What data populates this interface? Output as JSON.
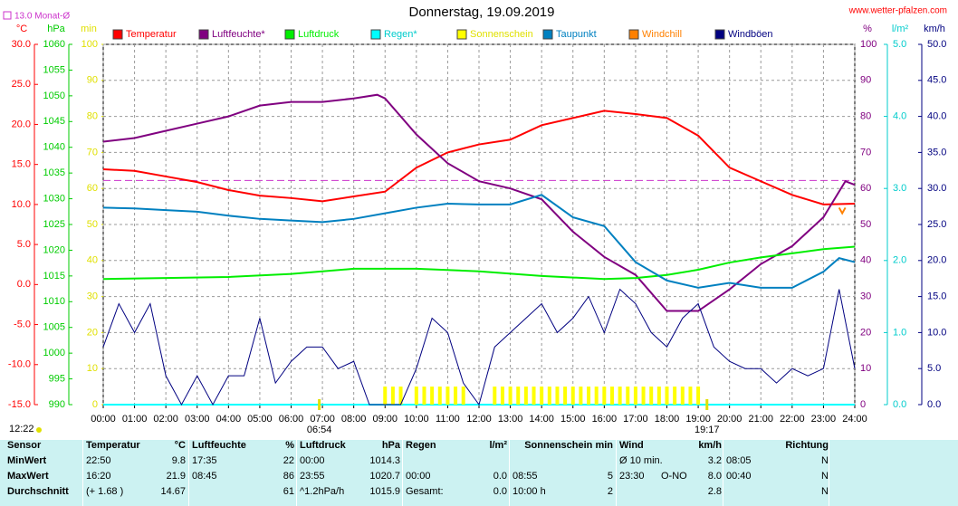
{
  "chart_data": {
    "type": "line",
    "title": "Donnerstag, 19.09.2019",
    "site": "www.wetter-pfalzen.com",
    "monthly_mean": {
      "label": "13.0 Monat-Ø",
      "value": 13.0,
      "color": "#cc33cc"
    },
    "axes": {
      "temp": {
        "unit": "°C",
        "color": "#ff0000",
        "lim": [
          -15,
          30
        ],
        "ticks": [
          {
            "value": -15,
            "label": "-15.0"
          },
          {
            "value": -10,
            "label": "-10.0"
          },
          {
            "value": -5,
            "label": "-5.0"
          },
          {
            "value": 0,
            "label": "0.0"
          },
          {
            "value": 5,
            "label": "5.0"
          },
          {
            "value": 10,
            "label": "10.0"
          },
          {
            "value": 15,
            "label": "15.0"
          },
          {
            "value": 20,
            "label": "20.0"
          },
          {
            "value": 25,
            "label": "25.0"
          },
          {
            "value": 30,
            "label": "30.0"
          }
        ]
      },
      "hpa": {
        "unit": "hPa",
        "color": "#00cc00",
        "lim": [
          990,
          1060
        ],
        "ticks": [
          990,
          995,
          1000,
          1005,
          1010,
          1015,
          1020,
          1025,
          1030,
          1035,
          1040,
          1045,
          1050,
          1055,
          1060
        ]
      },
      "min": {
        "unit": "min",
        "color": "#e0e000",
        "lim": [
          0,
          100
        ],
        "ticks": [
          0,
          10,
          20,
          30,
          40,
          50,
          60,
          70,
          80,
          90,
          100
        ]
      },
      "pct": {
        "unit": "%",
        "color": "#800080",
        "lim": [
          0,
          100
        ],
        "ticks": [
          0,
          10,
          20,
          30,
          40,
          50,
          60,
          70,
          80,
          90,
          100
        ]
      },
      "rain": {
        "unit": "l/m²",
        "color": "#00cccc",
        "lim": [
          0,
          5
        ],
        "ticks": [
          {
            "value": 0,
            "label": "0.0"
          },
          {
            "value": 1,
            "label": "1.0"
          },
          {
            "value": 2,
            "label": "2.0"
          },
          {
            "value": 3,
            "label": "3.0"
          },
          {
            "value": 4,
            "label": "4.0"
          },
          {
            "value": 5,
            "label": "5.0"
          }
        ]
      },
      "kmh": {
        "unit": "km/h",
        "color": "#000080",
        "lim": [
          0,
          50
        ],
        "ticks": [
          {
            "value": 0,
            "label": "0.0"
          },
          {
            "value": 5,
            "label": "5.0"
          },
          {
            "value": 10,
            "label": "10.0"
          },
          {
            "value": 15,
            "label": "15.0"
          },
          {
            "value": 20,
            "label": "20.0"
          },
          {
            "value": 25,
            "label": "25.0"
          },
          {
            "value": 30,
            "label": "30.0"
          },
          {
            "value": 35,
            "label": "35.0"
          },
          {
            "value": 40,
            "label": "40.0"
          },
          {
            "value": 45,
            "label": "45.0"
          },
          {
            "value": 50,
            "label": "50.0"
          }
        ]
      }
    },
    "xlim": [
      0,
      24
    ],
    "xticks": [
      {
        "value": 0,
        "label": "00:00"
      },
      {
        "value": 1,
        "label": "01:00"
      },
      {
        "value": 2,
        "label": "02:00"
      },
      {
        "value": 3,
        "label": "03:00"
      },
      {
        "value": 4,
        "label": "04:00"
      },
      {
        "value": 5,
        "label": "05:00"
      },
      {
        "value": 6,
        "label": "06:00"
      },
      {
        "value": 7,
        "label": "07:00"
      },
      {
        "value": 8,
        "label": "08:00"
      },
      {
        "value": 9,
        "label": "09:00"
      },
      {
        "value": 10,
        "label": "10:00"
      },
      {
        "value": 11,
        "label": "11:00"
      },
      {
        "value": 12,
        "label": "12:00"
      },
      {
        "value": 13,
        "label": "13:00"
      },
      {
        "value": 14,
        "label": "14:00"
      },
      {
        "value": 15,
        "label": "15:00"
      },
      {
        "value": 16,
        "label": "16:00"
      },
      {
        "value": 17,
        "label": "17:00"
      },
      {
        "value": 18,
        "label": "18:00"
      },
      {
        "value": 19,
        "label": "19:00"
      },
      {
        "value": 20,
        "label": "20:00"
      },
      {
        "value": 21,
        "label": "21:00"
      },
      {
        "value": 22,
        "label": "22:00"
      },
      {
        "value": 23,
        "label": "23:00"
      },
      {
        "value": 24,
        "label": "24:00"
      }
    ],
    "grid": true,
    "series": [
      {
        "name": "Temperatur",
        "color": "#ff0000",
        "axis": "temp",
        "x": [
          0,
          1,
          2,
          3,
          4,
          5,
          6,
          7,
          8,
          9,
          10,
          11,
          12,
          13,
          14,
          15,
          16,
          17,
          18,
          19,
          20,
          21,
          22,
          23,
          24
        ],
        "values": [
          14.4,
          14.2,
          13.5,
          12.8,
          11.8,
          11.1,
          10.8,
          10.4,
          11.0,
          11.6,
          14.6,
          16.5,
          17.5,
          18.1,
          19.9,
          20.8,
          21.7,
          21.3,
          20.8,
          18.6,
          14.6,
          12.9,
          11.2,
          10.0,
          10.1
        ]
      },
      {
        "name": "Luftfeuchte*",
        "color": "#800080",
        "axis": "pct",
        "x": [
          0,
          1,
          2,
          3,
          4,
          5,
          6,
          7,
          8,
          8.75,
          9,
          10,
          11,
          12,
          13,
          14,
          15,
          16,
          17,
          18,
          19,
          20,
          21,
          22,
          23,
          23.7,
          24
        ],
        "values": [
          73,
          74,
          76,
          78,
          80,
          83,
          84,
          84,
          85,
          86,
          85,
          75,
          67,
          62,
          60,
          57,
          48,
          41,
          36,
          26,
          26,
          32,
          39,
          44,
          52,
          62,
          61
        ]
      },
      {
        "name": "Luftdruck",
        "color": "#00ee00",
        "axis": "hpa",
        "x": [
          0,
          2,
          4,
          6,
          8,
          10,
          12,
          14,
          16,
          17,
          18,
          19,
          20,
          21,
          22,
          23,
          24
        ],
        "values": [
          1014.4,
          1014.6,
          1014.8,
          1015.4,
          1016.4,
          1016.4,
          1015.9,
          1015.0,
          1014.4,
          1014.6,
          1015.2,
          1016.2,
          1017.6,
          1018.6,
          1019.4,
          1020.2,
          1020.7
        ]
      },
      {
        "name": "Regen*",
        "color": "#00ffff",
        "axis": "rain",
        "x": [
          0,
          24
        ],
        "values": [
          0,
          0
        ]
      },
      {
        "name": "Sonnenschein",
        "color": "#ffff00",
        "axis": "min",
        "bars": true,
        "x": [
          9,
          9.25,
          9.5,
          9.75,
          10,
          10.25,
          10.5,
          10.75,
          11,
          11.25,
          11.5,
          11.75,
          12,
          12.25,
          12.5,
          12.75,
          13,
          13.25,
          13.5,
          13.75,
          14,
          14.25,
          14.5,
          14.75,
          15,
          15.25,
          15.5,
          15.75,
          16,
          16.25,
          16.5,
          16.75,
          17,
          17.25,
          17.5,
          17.75,
          18,
          18.25,
          18.5,
          18.75,
          19
        ],
        "values": [
          5,
          5,
          5,
          0,
          5,
          5,
          5,
          5,
          5,
          5,
          5,
          0,
          0,
          0,
          5,
          5,
          5,
          5,
          5,
          5,
          5,
          5,
          5,
          5,
          5,
          5,
          5,
          5,
          5,
          5,
          5,
          5,
          5,
          5,
          5,
          5,
          5,
          5,
          5,
          5,
          5
        ]
      },
      {
        "name": "Taupunkt",
        "color": "#0080c0",
        "axis": "temp",
        "x": [
          0,
          1,
          2,
          3,
          4,
          5,
          6,
          7,
          8,
          9,
          10,
          11,
          12,
          13,
          14,
          15,
          16,
          17,
          18,
          19,
          20,
          21,
          22,
          23,
          23.5,
          24
        ],
        "values": [
          9.6,
          9.5,
          9.3,
          9.1,
          8.6,
          8.2,
          8.0,
          7.8,
          8.2,
          8.9,
          9.6,
          10.1,
          10.0,
          10.0,
          11.2,
          8.4,
          7.3,
          2.8,
          0.5,
          -0.4,
          0.2,
          -0.4,
          -0.4,
          1.6,
          3.3,
          2.8
        ]
      },
      {
        "name": "Windchill",
        "color": "#ff8000",
        "axis": "temp",
        "x": [
          23.5,
          23.6,
          23.7
        ],
        "values": [
          9.6,
          8.9,
          9.6
        ]
      },
      {
        "name": "Windböen",
        "color": "#000080",
        "axis": "kmh",
        "x": [
          0,
          0.5,
          1,
          1.5,
          2,
          2.5,
          3,
          3.5,
          4,
          4.5,
          5,
          5.5,
          6,
          6.5,
          7,
          7.5,
          8,
          8.5,
          9,
          9.5,
          10,
          10.5,
          11,
          11.5,
          12,
          12.5,
          13,
          13.5,
          14,
          14.5,
          15,
          15.5,
          16,
          16.5,
          17,
          17.5,
          18,
          18.5,
          19,
          19.5,
          20,
          20.5,
          21,
          21.5,
          22,
          22.5,
          23,
          23.5,
          24
        ],
        "values": [
          8,
          14,
          10,
          14,
          4,
          0,
          4,
          0,
          4,
          4,
          12,
          3,
          6,
          8,
          8,
          5,
          6,
          0,
          0,
          0,
          5,
          12,
          10,
          3,
          0,
          8,
          10,
          12,
          14,
          10,
          12,
          15,
          10,
          16,
          14,
          10,
          8,
          12,
          14,
          8,
          6,
          5,
          5,
          3,
          5,
          4,
          5,
          16,
          5
        ]
      }
    ]
  },
  "markers": [
    {
      "label": "06:54",
      "value": 6.9
    },
    {
      "label": "19:17",
      "value": 19.28
    }
  ],
  "moon": "12:22",
  "table": {
    "headers": [
      [
        "Sensor"
      ],
      [
        "Temperatur",
        "°C"
      ],
      [
        "Luftfeuchte",
        "%"
      ],
      [
        "Luftdruck",
        "hPa"
      ],
      [
        "Regen",
        "l/m²"
      ],
      [
        "Sonnenschein min"
      ],
      [
        "Wind",
        "km/h"
      ],
      [
        "Richtung"
      ]
    ],
    "rows": [
      [
        [
          "MinWert"
        ],
        [
          "22:50",
          "9.8"
        ],
        [
          "17:35",
          "22"
        ],
        [
          "00:00",
          "1014.3"
        ],
        [],
        [],
        [
          "Ø 10 min.",
          "3.2"
        ],
        [
          "08:05",
          "N"
        ]
      ],
      [
        [
          "MaxWert"
        ],
        [
          "16:20",
          "21.9"
        ],
        [
          "08:45",
          "86"
        ],
        [
          "23:55",
          "1020.7"
        ],
        [
          "00:00",
          "0.0"
        ],
        [
          "08:55",
          "5"
        ],
        [
          "23:30",
          "O-NO",
          "8.0"
        ],
        [
          "00:40",
          "N"
        ]
      ],
      [
        [
          "Durchschnitt"
        ],
        [
          "(+ 1.68 )",
          "14.67"
        ],
        [
          "61"
        ],
        [
          "^1.2hPa/h",
          "1015.9"
        ],
        [
          "Gesamt:",
          "0.0"
        ],
        [
          "10:00 h",
          "2"
        ],
        [
          "2.8"
        ],
        [
          "N"
        ]
      ]
    ]
  }
}
